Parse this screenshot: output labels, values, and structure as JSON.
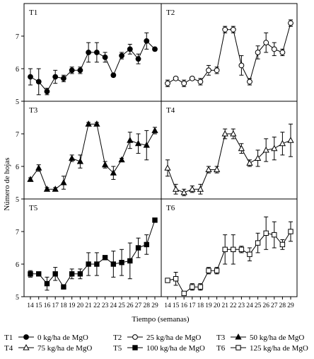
{
  "chart_data": {
    "type": "line",
    "xlabel": "Tiempo (semanas)",
    "ylabel": "Número de hojas",
    "ylim": [
      5,
      8
    ],
    "yticks": [
      5,
      6,
      7
    ],
    "x": [
      14,
      15,
      16,
      17,
      18,
      19,
      20,
      21,
      22,
      23,
      24,
      25,
      26,
      27,
      28,
      29
    ],
    "grid": false,
    "legend_position": "bottom",
    "panels": [
      {
        "label": "T1",
        "marker": "circle",
        "fill": "black",
        "values": [
          5.75,
          5.6,
          5.3,
          5.75,
          5.7,
          5.95,
          5.95,
          6.5,
          6.5,
          6.35,
          5.8,
          6.4,
          6.6,
          6.3,
          6.85,
          6.6
        ],
        "errors": [
          0.25,
          0.4,
          0.1,
          0.2,
          0.1,
          0.1,
          0.1,
          0.3,
          0.3,
          0.15,
          0.05,
          0.1,
          0.15,
          0.15,
          0.25,
          0.05
        ]
      },
      {
        "label": "T2",
        "marker": "circle",
        "fill": "white",
        "values": [
          5.55,
          5.7,
          5.55,
          5.7,
          5.6,
          5.95,
          5.95,
          7.2,
          7.2,
          6.1,
          5.6,
          6.5,
          6.8,
          6.6,
          6.5,
          7.4
        ],
        "errors": [
          0.1,
          0.05,
          0.1,
          0.05,
          0.1,
          0.15,
          0.1,
          0.1,
          0.1,
          0.3,
          0.1,
          0.2,
          0.3,
          0.2,
          0.1,
          0.1
        ]
      },
      {
        "label": "T3",
        "marker": "triangle",
        "fill": "black",
        "values": [
          5.6,
          5.95,
          5.3,
          5.3,
          5.5,
          6.25,
          6.15,
          7.3,
          7.3,
          6.05,
          5.8,
          6.2,
          6.8,
          6.7,
          6.65,
          7.1
        ],
        "errors": [
          0.05,
          0.1,
          0.05,
          0.05,
          0.2,
          0.1,
          0.2,
          0.05,
          0.05,
          0.1,
          0.2,
          0.05,
          0.25,
          0.3,
          0.45,
          0.1
        ]
      },
      {
        "label": "T4",
        "marker": "triangle",
        "fill": "white",
        "values": [
          5.95,
          5.3,
          5.2,
          5.3,
          5.3,
          5.9,
          5.9,
          7.0,
          7.0,
          6.55,
          6.1,
          6.25,
          6.5,
          6.55,
          6.7,
          6.8
        ],
        "errors": [
          0.25,
          0.15,
          0.1,
          0.1,
          0.15,
          0.1,
          0.1,
          0.15,
          0.15,
          0.15,
          0.1,
          0.25,
          0.35,
          0.35,
          0.35,
          0.5
        ]
      },
      {
        "label": "T5",
        "marker": "square",
        "fill": "black",
        "values": [
          5.7,
          5.7,
          5.4,
          5.7,
          5.3,
          5.7,
          5.7,
          6.0,
          6.0,
          6.2,
          6.0,
          6.05,
          6.1,
          6.5,
          6.6,
          7.35
        ],
        "errors": [
          0.1,
          0.05,
          0.2,
          0.2,
          0.05,
          0.15,
          0.15,
          0.35,
          0.35,
          0.05,
          0.4,
          0.4,
          0.55,
          0.3,
          0.3,
          0.05
        ]
      },
      {
        "label": "T6",
        "marker": "square",
        "fill": "white",
        "values": [
          5.5,
          5.55,
          5.1,
          5.3,
          5.3,
          5.8,
          5.8,
          6.45,
          6.45,
          6.45,
          6.3,
          6.65,
          6.95,
          6.9,
          6.6,
          7.0
        ],
        "errors": [
          0.05,
          0.2,
          0.05,
          0.1,
          0.1,
          0.1,
          0.1,
          0.45,
          0.45,
          0.1,
          0.2,
          0.3,
          0.5,
          0.4,
          0.15,
          0.3
        ]
      }
    ],
    "legend": [
      {
        "label": "T1",
        "text": "0 kg/ha de MgO",
        "marker": "circle",
        "fill": "black"
      },
      {
        "label": "T2",
        "text": "25 kg/ha de MgO",
        "marker": "circle",
        "fill": "white"
      },
      {
        "label": "T3",
        "text": "50 kg/ha de MgO",
        "marker": "triangle",
        "fill": "black"
      },
      {
        "label": "T4",
        "text": "75 kg/ha de MgO",
        "marker": "triangle",
        "fill": "white"
      },
      {
        "label": "T5",
        "text": "100 kg/ha de MgO",
        "marker": "square",
        "fill": "black"
      },
      {
        "label": "T6",
        "text": "125 kg/ha de MgO",
        "marker": "square",
        "fill": "white"
      }
    ]
  }
}
